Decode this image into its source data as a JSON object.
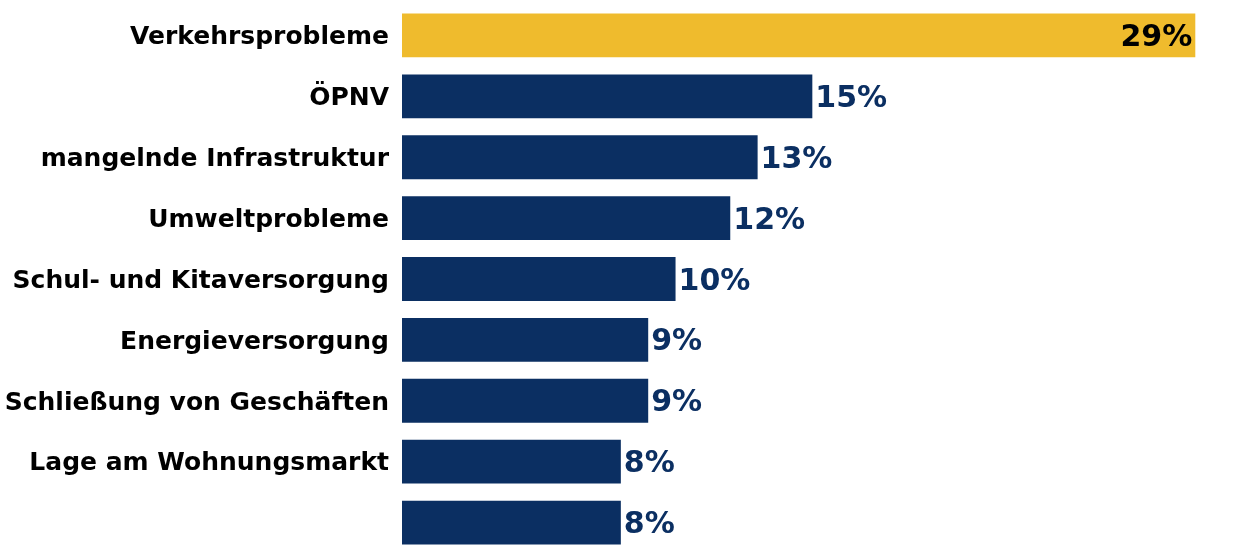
{
  "chart_data": {
    "type": "bar",
    "orientation": "horizontal",
    "categories": [
      "Verkehrsprobleme",
      "ÖPNV",
      "mangelnde Infrastruktur",
      "Umweltprobleme",
      "Schul- und Kitaversorgung",
      "Energieversorgung",
      "Schließung von Geschäften",
      "Lage am Wohnungsmarkt",
      null
    ],
    "values": [
      29,
      15,
      13,
      12,
      10,
      9,
      9,
      8,
      8
    ],
    "colors": [
      "#efbb2d",
      "#0b2f62",
      "#0b2f62",
      "#0b2f62",
      "#0b2f62",
      "#0b2f62",
      "#0b2f62",
      "#0b2f62",
      "#0b2f62"
    ],
    "value_labels": [
      "29%",
      "15%",
      "13%",
      "12%",
      "10%",
      "9%",
      "9%",
      "8%",
      "8%"
    ]
  }
}
